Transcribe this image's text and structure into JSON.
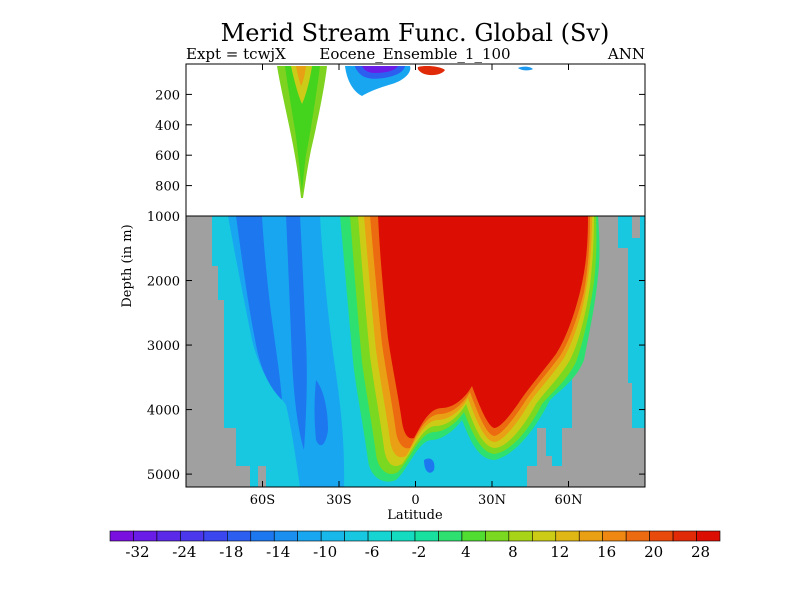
{
  "chart_data": {
    "type": "heatmap",
    "title": "Merid Stream Func. Global (Sv)",
    "header_left": "Expt = tcwjX",
    "header_center": "Eocene_Ensemble_1_100",
    "header_right": "ANN",
    "xlabel": "Latitude",
    "ylabel": "Depth (in m)",
    "x_ticks": [
      "60S",
      "30S",
      "0",
      "30N",
      "60N"
    ],
    "x_tick_values": [
      -60,
      -30,
      0,
      30,
      60
    ],
    "xlim": [
      -90,
      90
    ],
    "upper_panel": {
      "ylim": [
        0,
        1000
      ],
      "y_ticks": [
        "200",
        "400",
        "600",
        "800"
      ],
      "y_tick_values": [
        200,
        400,
        600,
        800
      ]
    },
    "lower_panel": {
      "ylim": [
        1000,
        5200
      ],
      "y_ticks": [
        "1000",
        "2000",
        "3000",
        "4000",
        "5000"
      ],
      "y_tick_values": [
        1000,
        2000,
        3000,
        4000,
        5000
      ]
    },
    "colorbar": {
      "labels": [
        "-32",
        "-24",
        "-18",
        "-14",
        "-10",
        "-6",
        "-2",
        "4",
        "8",
        "12",
        "16",
        "20",
        "28"
      ],
      "colors": [
        "#7a10e0",
        "#6a1de6",
        "#5a2ae8",
        "#4b38ec",
        "#3c46ee",
        "#2c5ff0",
        "#1d78f0",
        "#1a8ff0",
        "#19a6f0",
        "#18b9ea",
        "#17c8e0",
        "#16d4d2",
        "#15dcc0",
        "#18e09e",
        "#2ee070",
        "#50dc30",
        "#7ad820",
        "#a8d418",
        "#cccc16",
        "#e0b816",
        "#eaa014",
        "#ee8812",
        "#ec6a10",
        "#e84a0c",
        "#e02a08",
        "#dc0e04"
      ]
    },
    "fields": {
      "upper_positive_cell_lat": [
        -50,
        -35
      ],
      "upper_negative_cell_lat": [
        -20,
        5
      ],
      "lower_positive_cell_lat": [
        -10,
        58
      ],
      "lower_negative_cell_lat": [
        -80,
        -20
      ],
      "max_value": 28,
      "min_value": -32
    }
  }
}
